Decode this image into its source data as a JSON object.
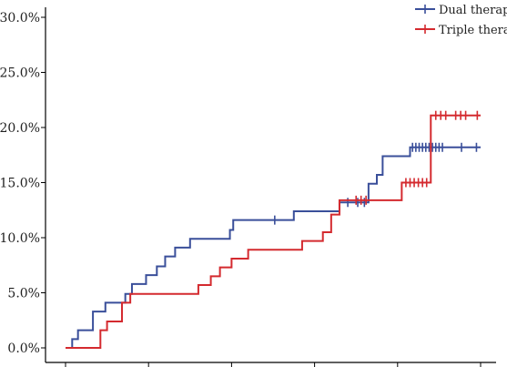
{
  "chart_data": {
    "type": "line",
    "title": "",
    "xlabel": "",
    "ylabel": "",
    "ylim": [
      0,
      30
    ],
    "y_ticks": [
      "0.0%",
      "5.0%",
      "10.0%",
      "15.0%",
      "20.0%",
      "25.0%",
      "30.0%"
    ],
    "y_tick_values": [
      0,
      5,
      10,
      15,
      20,
      25,
      30
    ],
    "xlim": [
      0,
      50
    ],
    "x_ticks": [
      0,
      10,
      20,
      30,
      40,
      50
    ],
    "x_tick_labels": [
      "",
      "",
      "",
      "",
      "",
      ""
    ],
    "legend_position": "top-right",
    "grid": false,
    "series": [
      {
        "name": "Dual therapy",
        "color": "#3a4f9a",
        "step_x": [
          0,
          0.8,
          1.5,
          3.3,
          4.8,
          7.2,
          8.0,
          8.5,
          9.7,
          11.0,
          12.0,
          13.2,
          14.5,
          15.0,
          19.8,
          20.2,
          27.5,
          33.0,
          36.5,
          37.5,
          38.2,
          41.5,
          50
        ],
        "step_y": [
          0,
          0.8,
          1.6,
          3.3,
          4.1,
          4.9,
          5.8,
          5.8,
          6.6,
          7.4,
          8.3,
          9.1,
          9.1,
          9.9,
          10.7,
          11.6,
          12.4,
          13.2,
          14.9,
          15.7,
          17.4,
          18.2,
          18.2
        ],
        "censor_x": [
          25.2,
          34.0,
          35.2,
          36.0,
          41.8,
          42.2,
          42.6,
          43.0,
          43.4,
          43.8,
          44.2,
          44.6,
          45.0,
          45.4,
          47.7,
          49.5
        ],
        "censor_y": [
          11.6,
          13.2,
          13.2,
          13.2,
          18.2,
          18.2,
          18.2,
          18.2,
          18.2,
          18.2,
          18.2,
          18.2,
          18.2,
          18.2,
          18.2,
          18.2
        ]
      },
      {
        "name": "Triple therapy",
        "color": "#d42a2f",
        "step_x": [
          0,
          4.2,
          5.0,
          6.8,
          7.8,
          16.0,
          17.5,
          18.6,
          20.0,
          22.0,
          24.0,
          28.5,
          31.0,
          32.0,
          33.0,
          36.5,
          40.5,
          44.0,
          50
        ],
        "step_y": [
          0,
          1.6,
          2.4,
          4.1,
          4.9,
          5.7,
          6.5,
          7.3,
          8.1,
          8.9,
          8.9,
          9.7,
          10.5,
          12.1,
          13.4,
          13.4,
          15.0,
          21.1,
          21.1
        ],
        "censor_x": [
          35.0,
          35.6,
          36.2,
          41.0,
          41.5,
          42.0,
          42.5,
          43.0,
          43.5,
          44.6,
          45.2,
          45.8,
          47.0,
          47.6,
          48.2,
          49.6
        ],
        "censor_y": [
          13.4,
          13.4,
          13.4,
          15.0,
          15.0,
          15.0,
          15.0,
          15.0,
          15.0,
          21.1,
          21.1,
          21.1,
          21.1,
          21.1,
          21.1,
          21.1
        ]
      }
    ]
  }
}
